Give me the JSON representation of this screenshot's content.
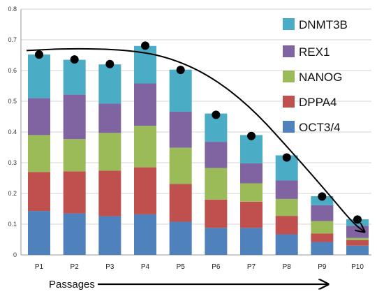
{
  "chart_data": {
    "type": "bar",
    "stacked": true,
    "xlabel": "Passages",
    "ylabel": "",
    "ylim": [
      0,
      0.8
    ],
    "yticks": [
      0,
      0.1,
      0.2,
      0.3,
      0.4,
      0.5,
      0.6,
      0.7,
      0.8
    ],
    "grid": "horizontal",
    "legend_position": "right",
    "categories": [
      "P1",
      "P2",
      "P3",
      "P4",
      "P5",
      "P6",
      "P7",
      "P8",
      "P9",
      "P10"
    ],
    "series": [
      {
        "name": "OCT3/4",
        "color": "#4F81BD",
        "values": [
          0.143,
          0.135,
          0.126,
          0.132,
          0.108,
          0.088,
          0.088,
          0.067,
          0.042,
          0.03
        ]
      },
      {
        "name": "DPPA4",
        "color": "#C0504D",
        "values": [
          0.127,
          0.137,
          0.148,
          0.153,
          0.123,
          0.092,
          0.085,
          0.06,
          0.028,
          0.018
        ]
      },
      {
        "name": "NANOG",
        "color": "#9BBB59",
        "values": [
          0.12,
          0.105,
          0.123,
          0.135,
          0.118,
          0.103,
          0.06,
          0.055,
          0.04,
          0.007
        ]
      },
      {
        "name": "REX1",
        "color": "#8064A2",
        "values": [
          0.12,
          0.145,
          0.095,
          0.138,
          0.117,
          0.085,
          0.065,
          0.06,
          0.052,
          0.04
        ]
      },
      {
        "name": "DNMT3B",
        "color": "#4BACC6",
        "values": [
          0.142,
          0.113,
          0.128,
          0.122,
          0.137,
          0.092,
          0.092,
          0.082,
          0.029,
          0.021
        ]
      }
    ],
    "markers": {
      "color": "#000000",
      "values": [
        0.652,
        0.636,
        0.621,
        0.681,
        0.602,
        0.456,
        0.387,
        0.317,
        0.19,
        0.115
      ]
    },
    "trend_arrow": true,
    "passages_arrow": true
  }
}
